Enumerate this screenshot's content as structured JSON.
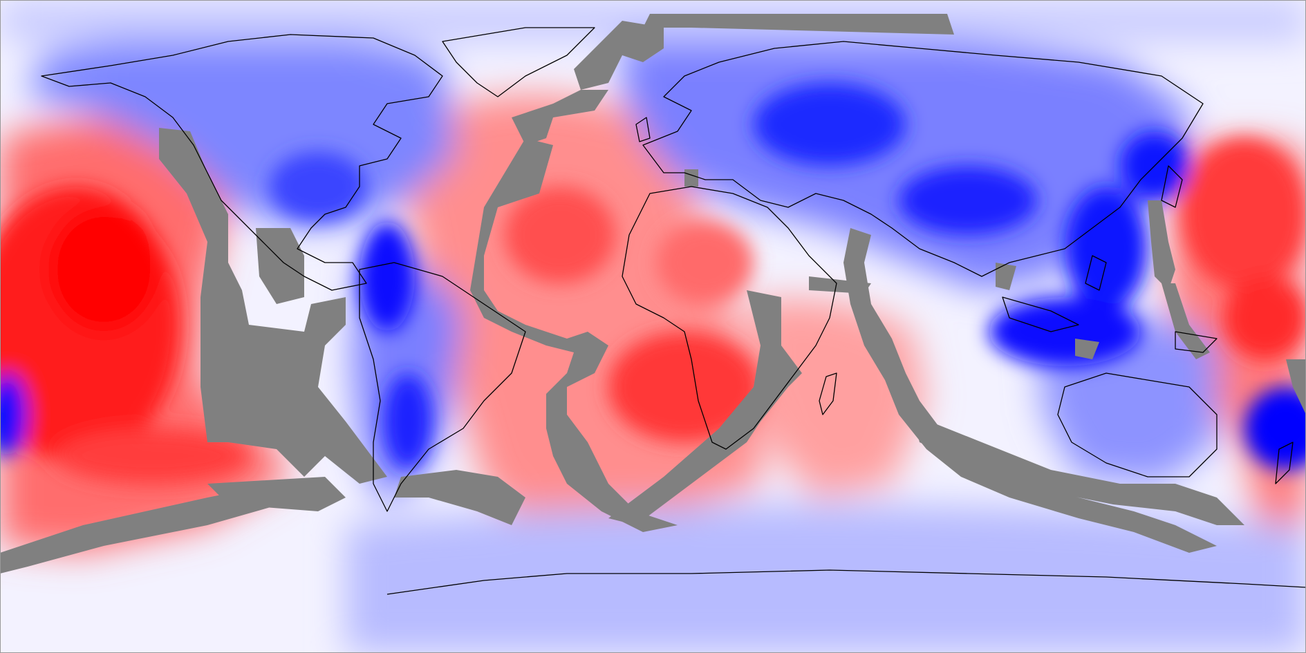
{
  "map": {
    "projection": "equirectangular",
    "extent": "global",
    "colormap": {
      "negative": "#ff0000",
      "neutral": "#f5f5ff",
      "positive": "#0000ff",
      "masked": "#808080",
      "coastline": "#000000"
    }
  }
}
